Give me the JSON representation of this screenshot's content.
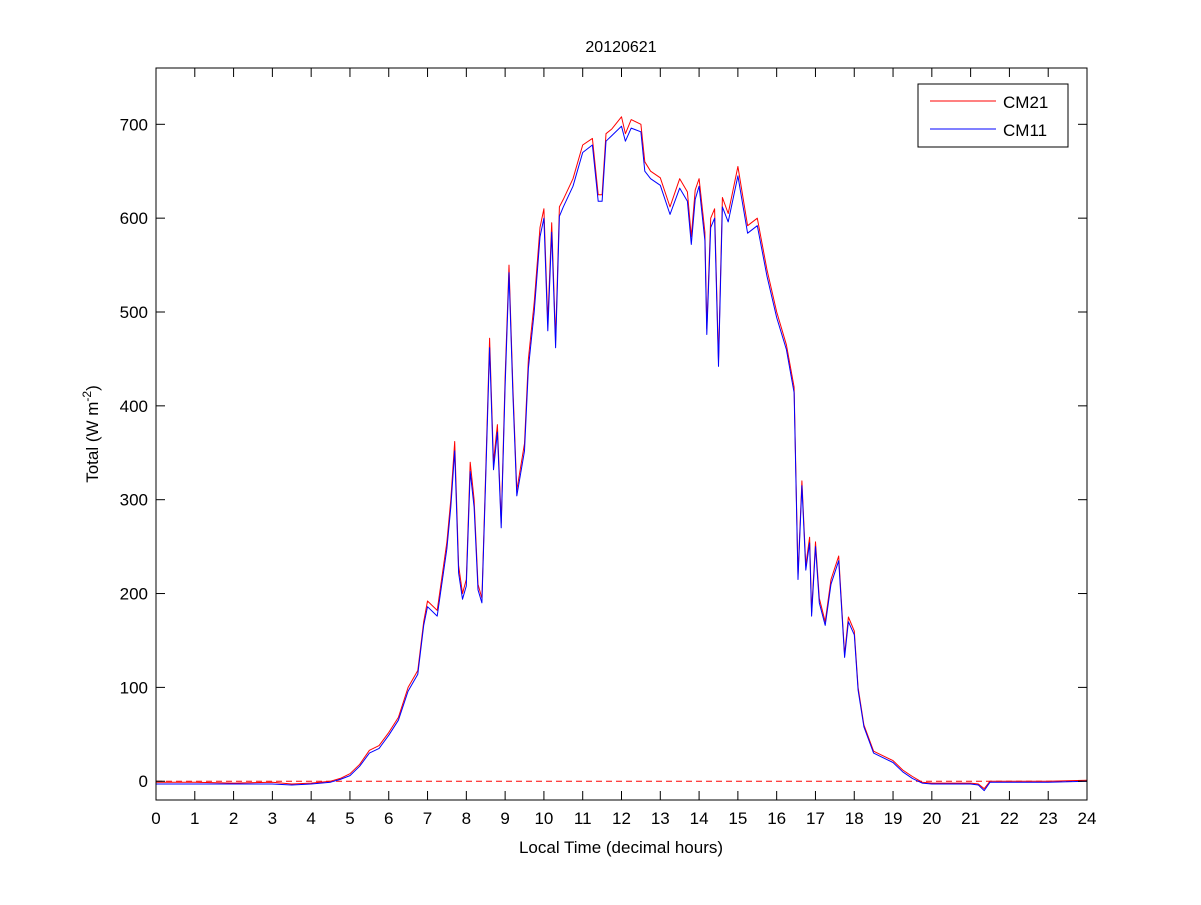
{
  "chart_data": {
    "type": "line",
    "title": "20120621",
    "xlabel": "Local Time (decimal hours)",
    "ylabel": {
      "main": "Total (W m",
      "sup": "-2",
      "end": ")"
    },
    "xlim": [
      0,
      24
    ],
    "ylim": [
      -20,
      760
    ],
    "xticks": [
      0,
      1,
      2,
      3,
      4,
      5,
      6,
      7,
      8,
      9,
      10,
      11,
      12,
      13,
      14,
      15,
      16,
      17,
      18,
      19,
      20,
      21,
      22,
      23,
      24
    ],
    "yticks": [
      0,
      100,
      200,
      300,
      400,
      500,
      600,
      700
    ],
    "grid": false,
    "legend_position": "top-right",
    "reference_line": {
      "y": 0,
      "style": "dashed",
      "color": "#ff0000"
    },
    "x": [
      0,
      1,
      2,
      3,
      3.5,
      4,
      4.5,
      4.75,
      5,
      5.25,
      5.5,
      5.75,
      6,
      6.25,
      6.5,
      6.75,
      6.9,
      7.0,
      7.25,
      7.5,
      7.6,
      7.7,
      7.8,
      7.9,
      8.0,
      8.1,
      8.2,
      8.3,
      8.4,
      8.5,
      8.6,
      8.7,
      8.8,
      8.9,
      9.0,
      9.1,
      9.2,
      9.3,
      9.5,
      9.6,
      9.75,
      9.9,
      10.0,
      10.1,
      10.2,
      10.3,
      10.4,
      10.5,
      10.75,
      11.0,
      11.25,
      11.4,
      11.5,
      11.6,
      11.75,
      12.0,
      12.1,
      12.25,
      12.5,
      12.6,
      12.75,
      13.0,
      13.25,
      13.5,
      13.7,
      13.8,
      13.9,
      14.0,
      14.15,
      14.2,
      14.3,
      14.4,
      14.5,
      14.6,
      14.75,
      15.0,
      15.25,
      15.5,
      15.75,
      16.0,
      16.25,
      16.45,
      16.55,
      16.65,
      16.75,
      16.85,
      16.9,
      17.0,
      17.1,
      17.25,
      17.4,
      17.6,
      17.75,
      17.85,
      18.0,
      18.1,
      18.25,
      18.5,
      18.75,
      19.0,
      19.25,
      19.5,
      19.75,
      20.0,
      20.5,
      21.0,
      21.2,
      21.35,
      21.5,
      22,
      23,
      24
    ],
    "series": [
      {
        "name": "CM21",
        "color": "#ff0000",
        "values": [
          -1,
          -1,
          -2,
          -1,
          -3,
          -2,
          0,
          3,
          8,
          18,
          33,
          38,
          52,
          68,
          100,
          118,
          170,
          192,
          182,
          255,
          300,
          362,
          230,
          200,
          215,
          340,
          300,
          210,
          195,
          330,
          472,
          340,
          380,
          275,
          430,
          550,
          420,
          310,
          360,
          450,
          510,
          590,
          610,
          490,
          595,
          470,
          612,
          620,
          642,
          678,
          685,
          625,
          625,
          690,
          695,
          708,
          690,
          705,
          700,
          660,
          650,
          643,
          612,
          642,
          628,
          580,
          630,
          642,
          585,
          482,
          600,
          610,
          448,
          622,
          605,
          655,
          592,
          600,
          545,
          500,
          465,
          420,
          220,
          320,
          230,
          260,
          180,
          255,
          195,
          170,
          215,
          240,
          135,
          175,
          160,
          100,
          60,
          32,
          27,
          22,
          12,
          5,
          -1,
          -2,
          -2,
          -2,
          -3,
          -8,
          0,
          0,
          0,
          1
        ]
      },
      {
        "name": "CM11",
        "color": "#0000ff",
        "values": [
          -3,
          -3,
          -3,
          -3,
          -4,
          -3,
          -1,
          2,
          6,
          16,
          30,
          35,
          49,
          65,
          96,
          114,
          166,
          186,
          176,
          248,
          292,
          352,
          222,
          194,
          208,
          330,
          292,
          204,
          190,
          322,
          462,
          332,
          372,
          270,
          420,
          542,
          412,
          304,
          352,
          440,
          500,
          580,
          600,
          480,
          585,
          462,
          602,
          612,
          634,
          670,
          678,
          618,
          618,
          682,
          688,
          698,
          682,
          696,
          692,
          650,
          642,
          635,
          604,
          632,
          618,
          572,
          620,
          634,
          576,
          476,
          590,
          600,
          442,
          612,
          596,
          645,
          584,
          592,
          538,
          494,
          460,
          414,
          215,
          315,
          225,
          254,
          176,
          250,
          190,
          166,
          210,
          235,
          132,
          170,
          156,
          97,
          58,
          30,
          25,
          20,
          10,
          3,
          -2,
          -3,
          -3,
          -3,
          -4,
          -10,
          -1,
          -1,
          -1,
          0
        ]
      }
    ]
  }
}
